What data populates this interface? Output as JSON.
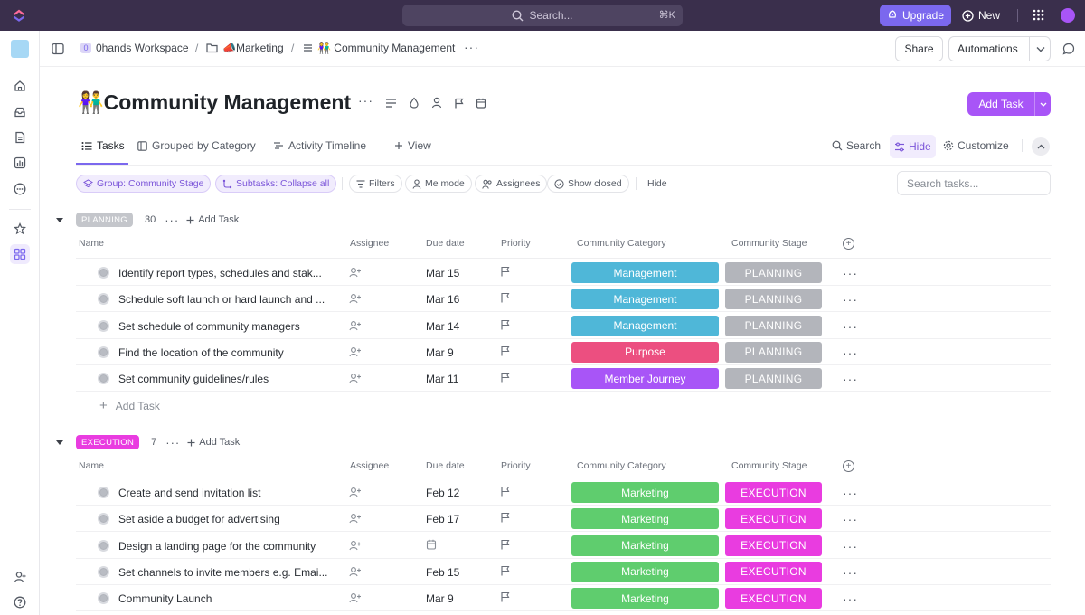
{
  "topbar": {
    "search_placeholder": "Search...",
    "search_shortcut": "⌘K",
    "upgrade_label": "Upgrade",
    "new_label": "New"
  },
  "breadcrumb": {
    "workspace_badge": "0",
    "workspace": "0hands Workspace",
    "folder": "📣Marketing",
    "list": "👫 Community Management"
  },
  "header_buttons": {
    "share": "Share",
    "automations": "Automations"
  },
  "page": {
    "title_icon": "👫",
    "title": "Community Management",
    "add_task": "Add Task"
  },
  "tabs": [
    {
      "label": "Tasks",
      "icon": "list-icon"
    },
    {
      "label": "Grouped by Category",
      "icon": "board-icon"
    },
    {
      "label": "Activity Timeline",
      "icon": "timeline-icon"
    },
    {
      "label": "View",
      "icon": "plus-icon"
    }
  ],
  "view_tools": {
    "search": "Search",
    "hide": "Hide",
    "customize": "Customize"
  },
  "toolbar": {
    "group": "Group: Community Stage",
    "subtasks": "Subtasks: Collapse all",
    "filters": "Filters",
    "me_mode": "Me mode",
    "assignees": "Assignees",
    "show_closed": "Show closed",
    "hide": "Hide",
    "search_placeholder": "Search tasks..."
  },
  "columns": {
    "name": "Name",
    "assignee": "Assignee",
    "due": "Due date",
    "priority": "Priority",
    "category": "Community Category",
    "stage": "Community Stage"
  },
  "colors": {
    "management": "#4fb7d8",
    "purpose": "#ec4f80",
    "member_journey": "#a855f7",
    "marketing": "#5fcd6e",
    "planning": "#b3b5bb",
    "execution": "#e93ce0",
    "accent": "#7b68ee"
  },
  "groups": [
    {
      "badge": "PLANNING",
      "badge_bg": "#c4c6cb",
      "badge_color": "#ffffff",
      "count": "30",
      "add_task": "Add Task",
      "tasks": [
        {
          "name": "Identify report types, schedules and stak...",
          "due": "Mar 15",
          "category": "Management",
          "category_color": "#4fb7d8",
          "stage": "PLANNING",
          "stage_color": "#b3b5bb"
        },
        {
          "name": "Schedule soft launch or hard launch and ...",
          "due": "Mar 16",
          "category": "Management",
          "category_color": "#4fb7d8",
          "stage": "PLANNING",
          "stage_color": "#b3b5bb"
        },
        {
          "name": "Set schedule of community managers",
          "due": "Mar 14",
          "category": "Management",
          "category_color": "#4fb7d8",
          "stage": "PLANNING",
          "stage_color": "#b3b5bb"
        },
        {
          "name": "Find the location of the community",
          "due": "Mar 9",
          "category": "Purpose",
          "category_color": "#ec4f80",
          "stage": "PLANNING",
          "stage_color": "#b3b5bb"
        },
        {
          "name": "Set community guidelines/rules",
          "due": "Mar 11",
          "category": "Member Journey",
          "category_color": "#a855f7",
          "stage": "PLANNING",
          "stage_color": "#b3b5bb"
        }
      ],
      "add_row": "Add Task"
    },
    {
      "badge": "EXECUTION",
      "badge_bg": "#e93ce0",
      "badge_color": "#ffffff",
      "count": "7",
      "add_task": "Add Task",
      "tasks": [
        {
          "name": "Create and send invitation list",
          "due": "Feb 12",
          "category": "Marketing",
          "category_color": "#5fcd6e",
          "stage": "EXECUTION",
          "stage_color": "#e93ce0"
        },
        {
          "name": "Set aside a budget for advertising",
          "due": "Feb 17",
          "category": "Marketing",
          "category_color": "#5fcd6e",
          "stage": "EXECUTION",
          "stage_color": "#e93ce0"
        },
        {
          "name": "Design a landing page for the community",
          "due": "",
          "category": "Marketing",
          "category_color": "#5fcd6e",
          "stage": "EXECUTION",
          "stage_color": "#e93ce0"
        },
        {
          "name": "Set channels to invite members e.g. Emai...",
          "due": "Feb 15",
          "category": "Marketing",
          "category_color": "#5fcd6e",
          "stage": "EXECUTION",
          "stage_color": "#e93ce0"
        },
        {
          "name": "Community Launch",
          "due": "Mar 9",
          "category": "Marketing",
          "category_color": "#5fcd6e",
          "stage": "EXECUTION",
          "stage_color": "#e93ce0"
        }
      ]
    }
  ]
}
